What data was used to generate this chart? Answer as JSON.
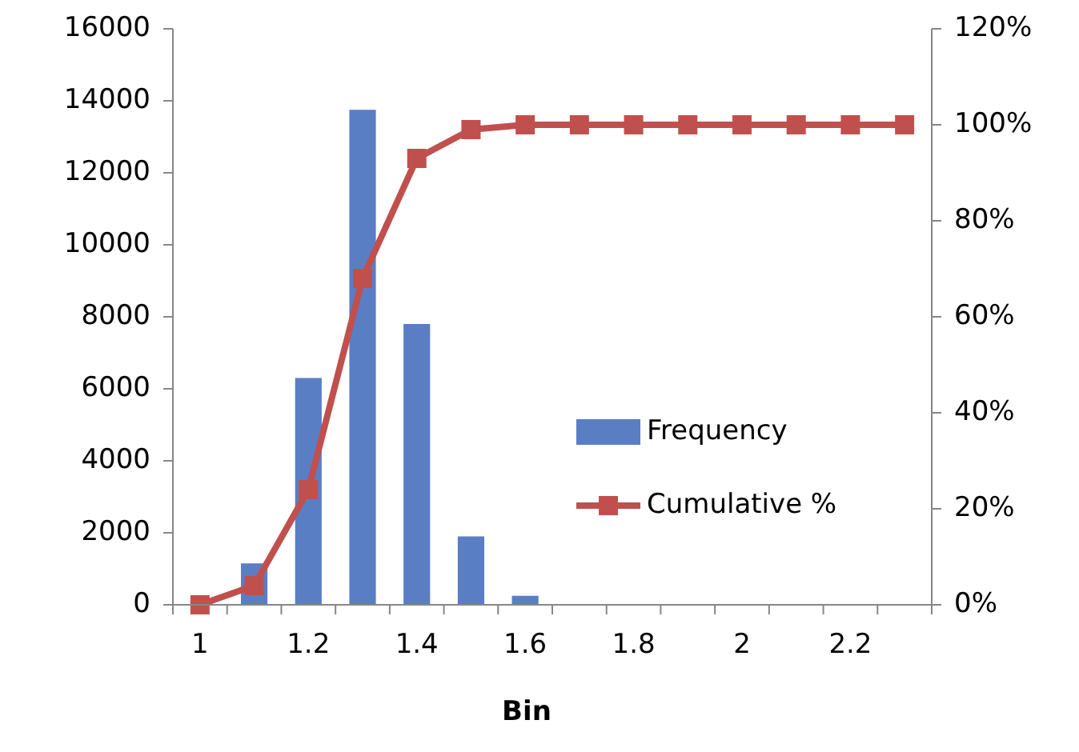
{
  "chart_data": {
    "type": "bar",
    "xlabel": "Bin",
    "categories": [
      "1",
      null,
      "1.2",
      null,
      "1.4",
      null,
      "1.6",
      null,
      "1.8",
      null,
      "2",
      null,
      "2.2",
      null
    ],
    "series": [
      {
        "name": "Frequency",
        "color": "#5a7ec3",
        "values": [
          0,
          1150,
          6300,
          13750,
          7800,
          1900,
          250,
          0,
          0,
          0,
          0,
          0,
          0,
          0
        ]
      },
      {
        "name": "Cumulative %",
        "type": "line",
        "axis": "y2",
        "color": "#c0504d",
        "marker": "square",
        "values": [
          0,
          4,
          24,
          68,
          93,
          99,
          100,
          100,
          100,
          100,
          100,
          100,
          100,
          100
        ]
      }
    ],
    "ylim": [
      0,
      16000
    ],
    "yticks": [
      0,
      2000,
      4000,
      6000,
      8000,
      10000,
      12000,
      14000,
      16000
    ],
    "y2lim": [
      0,
      120
    ],
    "y2ticks": [
      {
        "value": 0,
        "label": "0%"
      },
      {
        "value": 20,
        "label": "20%"
      },
      {
        "value": 40,
        "label": "40%"
      },
      {
        "value": 60,
        "label": "60%"
      },
      {
        "value": 80,
        "label": "80%"
      },
      {
        "value": 100,
        "label": "100%"
      },
      {
        "value": 120,
        "label": "120%"
      }
    ],
    "legend": "right",
    "grid": false
  }
}
